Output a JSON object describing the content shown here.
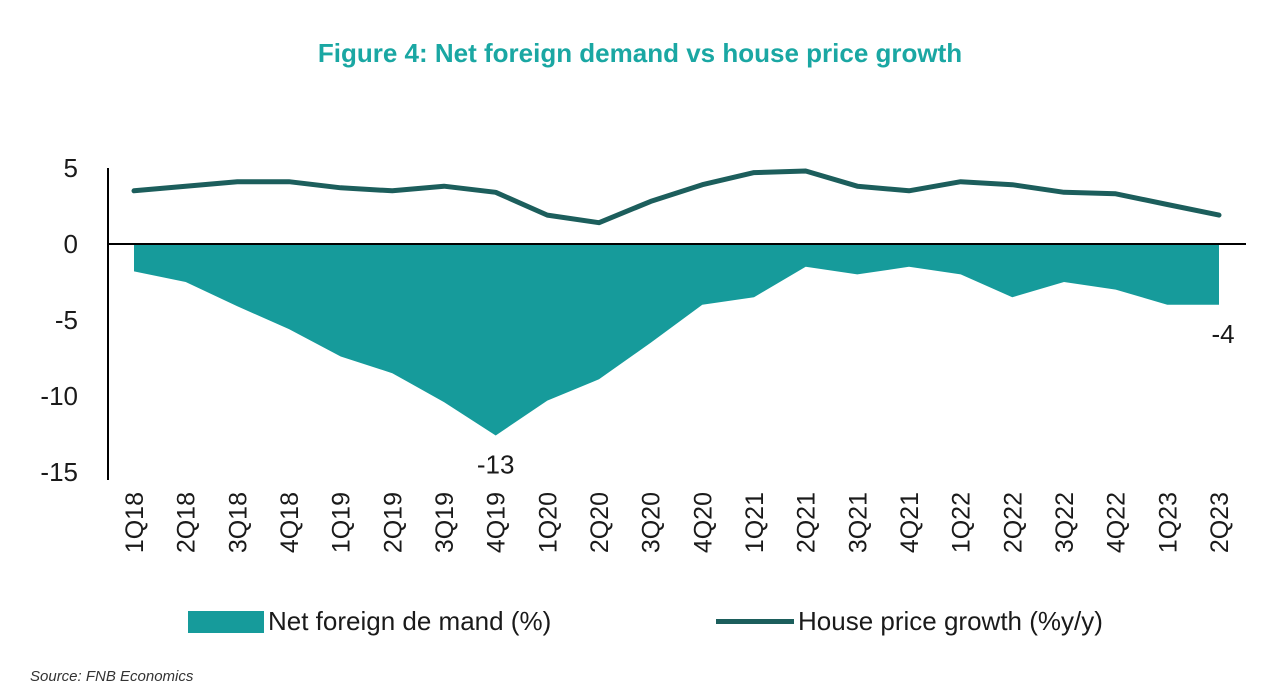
{
  "chart_data": {
    "type": "area",
    "title": "Figure 4: Net foreign demand vs house price growth",
    "categories": [
      "1Q18",
      "2Q18",
      "3Q18",
      "4Q18",
      "1Q19",
      "2Q19",
      "3Q19",
      "4Q19",
      "1Q20",
      "2Q20",
      "3Q20",
      "4Q20",
      "1Q21",
      "2Q21",
      "3Q21",
      "4Q21",
      "1Q22",
      "2Q22",
      "3Q22",
      "4Q22",
      "1Q23",
      "2Q23"
    ],
    "series": [
      {
        "name": "Net foreign demand (%)",
        "type": "area",
        "color": "#169b9b",
        "values": [
          -1.8,
          -2.5,
          -4.1,
          -5.6,
          -7.4,
          -8.5,
          -10.4,
          -12.6,
          -10.3,
          -8.9,
          -6.5,
          -4.0,
          -3.5,
          -1.5,
          -2.0,
          -1.5,
          -2.0,
          -3.5,
          -2.5,
          -3.0,
          -4.0,
          -4.0
        ]
      },
      {
        "name": "House price growth (%y/y)",
        "type": "line",
        "color": "#1c5e5c",
        "values": [
          3.5,
          3.8,
          4.1,
          4.1,
          3.7,
          3.5,
          3.8,
          3.4,
          1.9,
          1.4,
          2.8,
          3.9,
          4.7,
          4.8,
          3.8,
          3.5,
          4.1,
          3.9,
          3.4,
          3.3,
          2.6,
          1.9
        ]
      }
    ],
    "data_labels": [
      {
        "category": "4Q19",
        "text": "-13"
      },
      {
        "category": "2Q23",
        "text": "-4"
      }
    ],
    "yticks": [
      "5",
      "0",
      "-5",
      "-10",
      "-15"
    ],
    "ylim": [
      -15,
      5
    ],
    "xlabel": "",
    "ylabel": "",
    "grid": false,
    "legend_position": "bottom"
  },
  "legend": {
    "area_label": "Net foreign de mand (%)",
    "line_label": "House price growth (%y/y)"
  },
  "source": "Source: FNB Economics",
  "colors": {
    "title": "#1aa7a3",
    "area": "#169b9b",
    "line": "#1c5e5c",
    "axis": "#000000"
  }
}
